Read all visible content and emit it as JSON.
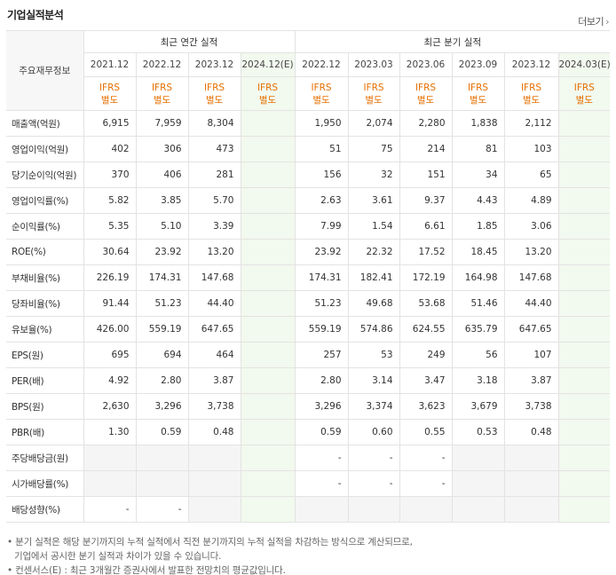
{
  "title": "기업실적분석",
  "more": {
    "label": "더보기",
    "arrow": "›"
  },
  "header": {
    "row_label": "주요재무정보",
    "annual_group": "최근 연간 실적",
    "quarter_group": "최근 분기 실적",
    "annual_periods": [
      "2021.12",
      "2022.12",
      "2023.12",
      "2024.12(E)"
    ],
    "quarter_periods": [
      "2022.12",
      "2023.03",
      "2023.06",
      "2023.09",
      "2023.12",
      "2024.03(E)"
    ],
    "ifrs_line1": "IFRS",
    "ifrs_line2": "별도"
  },
  "rows": [
    {
      "label": "매출액(억원)",
      "annual": [
        "6,915",
        "7,959",
        "8,304",
        ""
      ],
      "quarter": [
        "1,950",
        "2,074",
        "2,280",
        "1,838",
        "2,112",
        ""
      ]
    },
    {
      "label": "영업이익(억원)",
      "annual": [
        "402",
        "306",
        "473",
        ""
      ],
      "quarter": [
        "51",
        "75",
        "214",
        "81",
        "103",
        ""
      ]
    },
    {
      "label": "당기순이익(억원)",
      "annual": [
        "370",
        "406",
        "281",
        ""
      ],
      "quarter": [
        "156",
        "32",
        "151",
        "34",
        "65",
        ""
      ]
    },
    {
      "label": "영업이익률(%)",
      "annual": [
        "5.82",
        "3.85",
        "5.70",
        ""
      ],
      "quarter": [
        "2.63",
        "3.61",
        "9.37",
        "4.43",
        "4.89",
        ""
      ]
    },
    {
      "label": "순이익률(%)",
      "annual": [
        "5.35",
        "5.10",
        "3.39",
        ""
      ],
      "quarter": [
        "7.99",
        "1.54",
        "6.61",
        "1.85",
        "3.06",
        ""
      ]
    },
    {
      "label": "ROE(%)",
      "annual": [
        "30.64",
        "23.92",
        "13.20",
        ""
      ],
      "quarter": [
        "23.92",
        "22.32",
        "17.52",
        "18.45",
        "13.20",
        ""
      ]
    },
    {
      "label": "부채비율(%)",
      "annual": [
        "226.19",
        "174.31",
        "147.68",
        ""
      ],
      "quarter": [
        "174.31",
        "182.41",
        "172.19",
        "164.98",
        "147.68",
        ""
      ]
    },
    {
      "label": "당좌비율(%)",
      "annual": [
        "91.44",
        "51.23",
        "44.40",
        ""
      ],
      "quarter": [
        "51.23",
        "49.68",
        "53.68",
        "51.46",
        "44.40",
        ""
      ]
    },
    {
      "label": "유보율(%)",
      "annual": [
        "426.00",
        "559.19",
        "647.65",
        ""
      ],
      "quarter": [
        "559.19",
        "574.86",
        "624.55",
        "635.79",
        "647.65",
        ""
      ]
    },
    {
      "label": "EPS(원)",
      "annual": [
        "695",
        "694",
        "464",
        ""
      ],
      "quarter": [
        "257",
        "53",
        "249",
        "56",
        "107",
        ""
      ]
    },
    {
      "label": "PER(배)",
      "annual": [
        "4.92",
        "2.80",
        "3.87",
        ""
      ],
      "quarter": [
        "2.80",
        "3.14",
        "3.47",
        "3.18",
        "3.87",
        ""
      ]
    },
    {
      "label": "BPS(원)",
      "annual": [
        "2,630",
        "3,296",
        "3,738",
        ""
      ],
      "quarter": [
        "3,296",
        "3,374",
        "3,623",
        "3,679",
        "3,738",
        ""
      ]
    },
    {
      "label": "PBR(배)",
      "annual": [
        "1.30",
        "0.59",
        "0.48",
        ""
      ],
      "quarter": [
        "0.59",
        "0.60",
        "0.55",
        "0.53",
        "0.48",
        ""
      ]
    },
    {
      "label": "주당배당금(원)",
      "annual": [
        "",
        "",
        "",
        ""
      ],
      "quarter": [
        "-",
        "-",
        "-",
        "",
        "",
        ""
      ]
    },
    {
      "label": "시가배당률(%)",
      "annual": [
        "",
        "",
        "",
        ""
      ],
      "quarter": [
        "-",
        "-",
        "-",
        "",
        "",
        ""
      ]
    },
    {
      "label": "배당성향(%)",
      "annual": [
        "-",
        "-",
        "",
        ""
      ],
      "quarter": [
        "",
        "",
        "",
        "",
        "",
        ""
      ]
    }
  ],
  "notes": [
    "분기 실적은 해당 분기까지의 누적 실적에서 직전 분기까지의 누적 실적을 차감하는 방식으로 계산되므로,",
    "기업에서 공시한 분기 실적과 차이가 있을 수 있습니다.",
    "컨센서스(E) : 최근 3개월간 증권사에서 발표한 전망치의 평균값입니다."
  ],
  "bullet": "•"
}
